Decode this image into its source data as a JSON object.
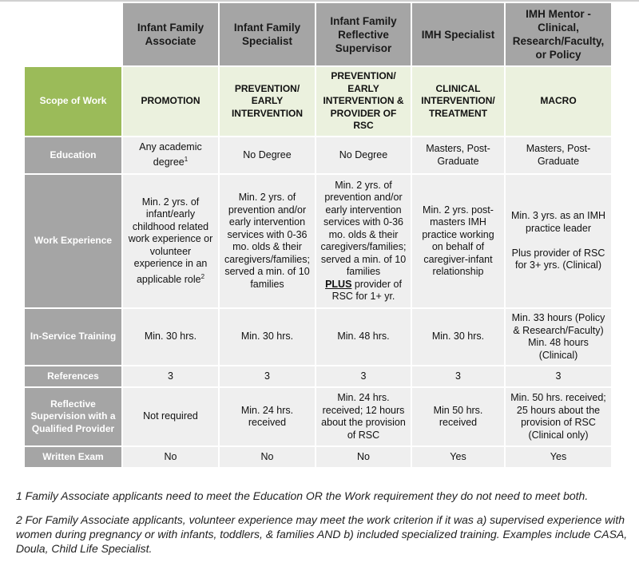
{
  "columns": [
    "Infant Family Associate",
    "Infant Family Specialist",
    "Infant Family Reflective Supervisor",
    "IMH Specialist",
    "IMH Mentor - Clinical, Research/Faculty, or Policy"
  ],
  "rows": [
    {
      "label": "Scope of Work",
      "cells": [
        "PROMOTION",
        "PREVENTION/ EARLY INTERVENTION",
        "PREVENTION/ EARLY INTERVENTION & PROVIDER OF RSC",
        "CLINICAL INTERVENTION/ TREATMENT",
        "MACRO"
      ]
    },
    {
      "label": "Education",
      "cells": [
        "Any academic degree",
        "No Degree",
        "No Degree",
        "Masters, Post-Graduate",
        "Masters, Post-Graduate"
      ],
      "sup": "1"
    },
    {
      "label": "Work Experience",
      "cells": [
        "Min. 2 yrs. of infant/early childhood related work experience or volunteer experience in an applicable role",
        "Min. 2 yrs. of prevention and/or early intervention services with 0-36 mo. olds & their caregivers/families; served a min. of 10 families",
        "Min. 2 yrs. of prevention and/or early intervention services with 0-36 mo. olds & their caregivers/families; served a min. of 10 families",
        "Min. 2 yrs. post-masters IMH practice working on behalf of caregiver-infant relationship",
        "Min. 3 yrs. as an IMH practice leader"
      ],
      "sup": "2",
      "plus_word": "PLUS",
      "plus_rest": " provider of RSC for 1+ yr.",
      "mentor_extra": "Plus provider of RSC for 3+ yrs. (Clinical)"
    },
    {
      "label": "In-Service Training",
      "cells": [
        "Min. 30 hrs.",
        "Min. 30 hrs.",
        "Min. 48 hrs.",
        "Min. 30 hrs.",
        "Min. 33 hours (Policy & Research/Faculty) Min. 48 hours (Clinical)"
      ]
    },
    {
      "label": "References",
      "cells": [
        "3",
        "3",
        "3",
        "3",
        "3"
      ]
    },
    {
      "label": "Reflective Supervision with a Qualified Provider",
      "cells": [
        "Not required",
        "Min. 24 hrs. received",
        "Min. 24 hrs. received; 12 hours about the provision of RSC",
        "Min 50 hrs. received",
        "Min. 50 hrs. received; 25 hours about the provision of RSC (Clinical only)"
      ]
    },
    {
      "label": "Written Exam",
      "cells": [
        "No",
        "No",
        "No",
        "Yes",
        "Yes"
      ]
    }
  ],
  "footnotes": [
    "1 Family Associate applicants need to meet the Education OR the Work requirement they do not need to meet both.",
    "2 For Family Associate applicants, volunteer experience may meet the work criterion if it was a) supervised experience with women during pregnancy or with infants, toddlers, & families AND b) included specialized training. Examples include CASA, Doula, Child Life Specialist."
  ],
  "colors": {
    "header_gray": "#a5a5a5",
    "scope_green": "#9bbb59",
    "scope_row": "#ebf1de",
    "cell": "#efefef"
  }
}
